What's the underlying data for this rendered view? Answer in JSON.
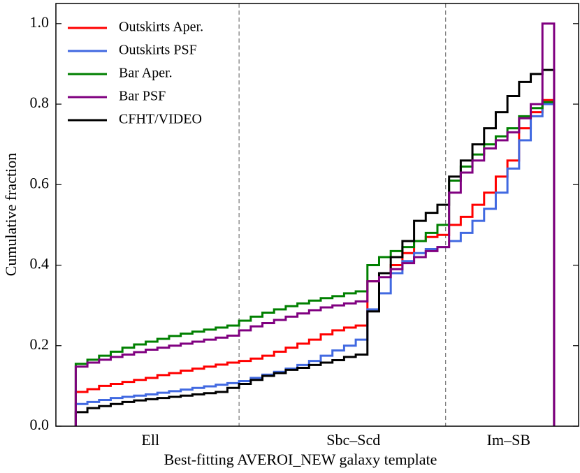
{
  "chart_data": {
    "type": "step-histogram",
    "xlabel": "Best-fitting AVEROI_NEW galaxy template",
    "ylabel": "Cumulative fraction",
    "bins": [
      0,
      1,
      2,
      3,
      4,
      5,
      6,
      7,
      8,
      9,
      10,
      11,
      12,
      13,
      14,
      15,
      16,
      17,
      18,
      19,
      20,
      21,
      22,
      23,
      24,
      25,
      26,
      27,
      28,
      29,
      30,
      31,
      32,
      33,
      34,
      35,
      36,
      37,
      38,
      39,
      40,
      41
    ],
    "xlim": [
      -1.7,
      43.1
    ],
    "xticks": [
      {
        "value": 6.4,
        "label": "Ell"
      },
      {
        "value": 23.8,
        "label": "Sbc–Scd"
      },
      {
        "value": 37.1,
        "label": "Im–SB"
      }
    ],
    "vlines": [
      14.0,
      31.7
    ],
    "ylim": [
      0,
      1.05
    ],
    "yticks": [
      {
        "value": 0,
        "label": "0.0"
      },
      0.2,
      0.4,
      0.6,
      0.8,
      {
        "value": 1,
        "label": "1.0"
      }
    ],
    "legend": "upper left",
    "series": [
      {
        "name": "Outskirts Aper.",
        "color": "#ff0000",
        "values": [
          0.085,
          0.092,
          0.1,
          0.105,
          0.11,
          0.115,
          0.12,
          0.127,
          0.132,
          0.138,
          0.143,
          0.148,
          0.153,
          0.158,
          0.162,
          0.168,
          0.175,
          0.185,
          0.195,
          0.205,
          0.215,
          0.228,
          0.238,
          0.245,
          0.25,
          0.36,
          0.38,
          0.4,
          0.43,
          0.46,
          0.47,
          0.475,
          0.5,
          0.52,
          0.55,
          0.58,
          0.62,
          0.66,
          0.74,
          0.78,
          0.81
        ]
      },
      {
        "name": "Outskirts PSF",
        "color": "#4169e1",
        "values": [
          0.055,
          0.06,
          0.065,
          0.07,
          0.073,
          0.076,
          0.079,
          0.083,
          0.087,
          0.091,
          0.095,
          0.099,
          0.103,
          0.107,
          0.112,
          0.12,
          0.128,
          0.135,
          0.143,
          0.152,
          0.162,
          0.175,
          0.188,
          0.2,
          0.215,
          0.29,
          0.33,
          0.38,
          0.41,
          0.43,
          0.44,
          0.445,
          0.46,
          0.48,
          0.51,
          0.54,
          0.58,
          0.64,
          0.71,
          0.77,
          0.8
        ]
      },
      {
        "name": "Bar Aper.",
        "color": "#008000",
        "values": [
          0.155,
          0.165,
          0.175,
          0.185,
          0.195,
          0.203,
          0.21,
          0.217,
          0.224,
          0.23,
          0.235,
          0.24,
          0.245,
          0.25,
          0.262,
          0.272,
          0.282,
          0.29,
          0.298,
          0.305,
          0.312,
          0.318,
          0.323,
          0.33,
          0.335,
          0.4,
          0.42,
          0.435,
          0.445,
          0.46,
          0.48,
          0.5,
          0.61,
          0.645,
          0.675,
          0.7,
          0.72,
          0.74,
          0.77,
          0.79,
          0.805
        ]
      },
      {
        "name": "Bar PSF",
        "color": "#800080",
        "values": [
          0.148,
          0.158,
          0.165,
          0.172,
          0.178,
          0.184,
          0.19,
          0.195,
          0.2,
          0.205,
          0.21,
          0.215,
          0.22,
          0.225,
          0.238,
          0.248,
          0.256,
          0.264,
          0.272,
          0.28,
          0.288,
          0.295,
          0.3,
          0.305,
          0.31,
          0.36,
          0.37,
          0.39,
          0.405,
          0.42,
          0.435,
          0.445,
          0.58,
          0.63,
          0.66,
          0.69,
          0.71,
          0.73,
          0.765,
          0.8,
          1.0
        ]
      },
      {
        "name": "CFHT/VIDEO",
        "color": "#000000",
        "values": [
          0.035,
          0.045,
          0.05,
          0.055,
          0.06,
          0.064,
          0.067,
          0.07,
          0.073,
          0.076,
          0.079,
          0.082,
          0.085,
          0.095,
          0.105,
          0.115,
          0.125,
          0.132,
          0.14,
          0.145,
          0.152,
          0.158,
          0.164,
          0.172,
          0.178,
          0.285,
          0.38,
          0.42,
          0.46,
          0.51,
          0.53,
          0.55,
          0.62,
          0.66,
          0.7,
          0.74,
          0.78,
          0.82,
          0.855,
          0.875,
          0.885
        ]
      }
    ]
  }
}
